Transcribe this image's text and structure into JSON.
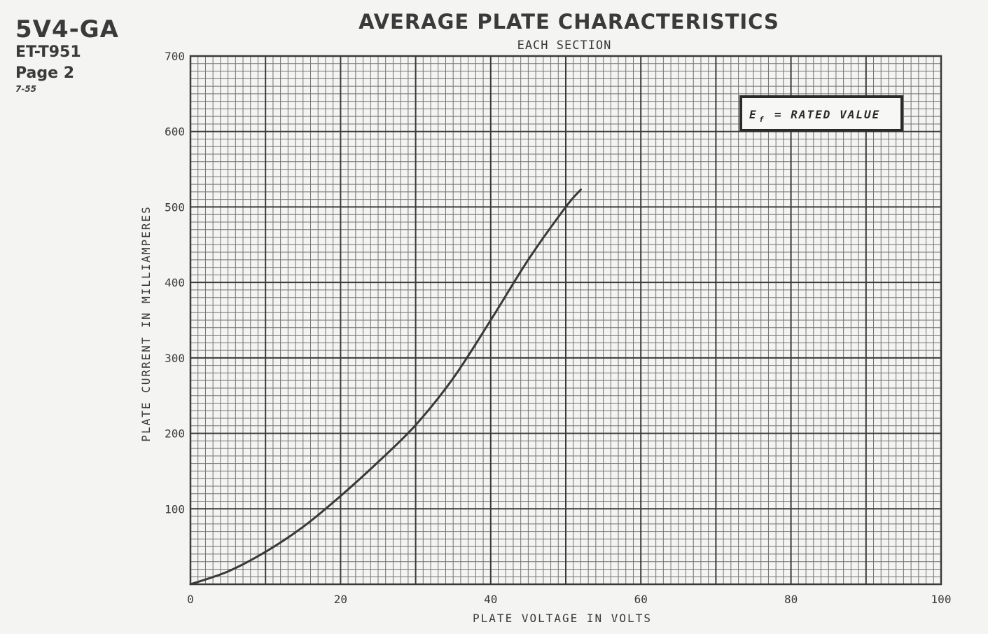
{
  "header": {
    "tube_type": "5V4-GA",
    "code": "ET-T951",
    "page": "Page 2",
    "date": "7-55"
  },
  "chart_data": {
    "type": "line",
    "title": "AVERAGE PLATE CHARACTERISTICS",
    "subtitle": "EACH SECTION",
    "xlabel": "PLATE VOLTAGE IN VOLTS",
    "ylabel": "PLATE CURRENT IN MILLIAMPERES",
    "xlim": [
      0,
      100
    ],
    "ylim": [
      0,
      700
    ],
    "x_ticks": [
      0,
      20,
      40,
      60,
      80,
      100
    ],
    "y_ticks": [
      100,
      200,
      300,
      400,
      500,
      600,
      700
    ],
    "x_tick_labels": [
      "0",
      "20",
      "40",
      "60",
      "80",
      "100"
    ],
    "y_tick_labels": [
      "100",
      "200",
      "300",
      "400",
      "500",
      "600",
      "700"
    ],
    "grid": true,
    "annotation": {
      "symbol": "E",
      "subscript": "f",
      "text": "= RATED VALUE",
      "position": "top-right"
    },
    "series": [
      {
        "name": "",
        "x": [
          0,
          5,
          10,
          15,
          20,
          25,
          30,
          35,
          40,
          45,
          50,
          52
        ],
        "y": [
          0,
          17,
          43,
          76,
          117,
          162,
          211,
          273,
          350,
          430,
          500,
          523
        ]
      }
    ]
  },
  "colors": {
    "grid": "#5a5a5a",
    "curve": "#3a3a3a",
    "paper": "#f4f4f2"
  }
}
